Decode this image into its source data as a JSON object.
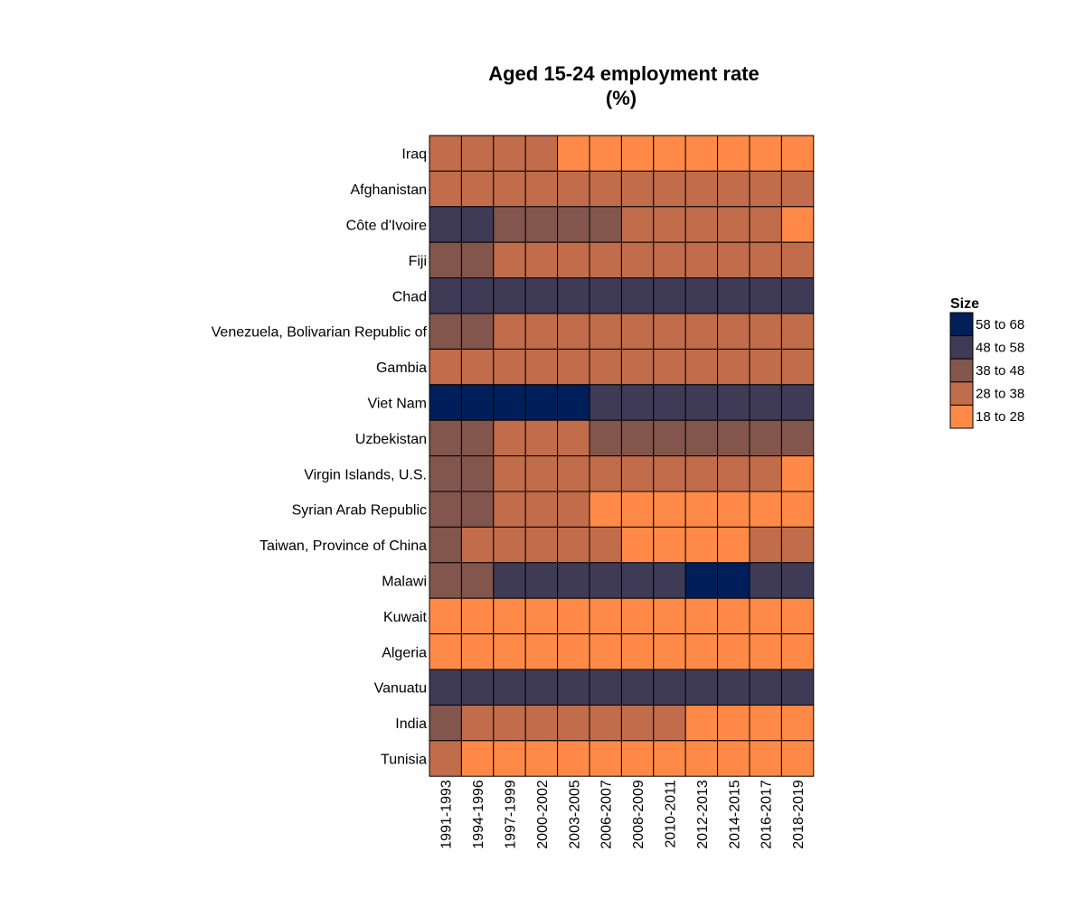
{
  "chart_data": {
    "type": "heatmap",
    "title_line1": "Aged 15-24 employment rate",
    "title_line2": "(%)",
    "x_categories": [
      "1991-1993",
      "1994-1996",
      "1997-1999",
      "2000-2002",
      "2003-2005",
      "2006-2007",
      "2008-2009",
      "2010-2011",
      "2012-2013",
      "2014-2015",
      "2016-2017",
      "2018-2019"
    ],
    "y_categories": [
      "Iraq",
      "Afghanistan",
      "Côte d'Ivoire",
      "Fiji",
      "Chad",
      "Venezuela, Bolivarian Republic of",
      "Gambia",
      "Viet Nam",
      "Uzbekistan",
      "Virgin Islands, U.S.",
      "Syrian Arab Republic",
      "Taiwan, Province of China",
      "Malawi",
      "Kuwait",
      "Algeria",
      "Vanuatu",
      "India",
      "Tunisia"
    ],
    "values_bin_index": [
      [
        1,
        1,
        1,
        1,
        0,
        0,
        0,
        0,
        0,
        0,
        0,
        0
      ],
      [
        1,
        1,
        1,
        1,
        1,
        1,
        1,
        1,
        1,
        1,
        1,
        1
      ],
      [
        3,
        3,
        2,
        2,
        2,
        2,
        1,
        1,
        1,
        1,
        1,
        0
      ],
      [
        2,
        2,
        1,
        1,
        1,
        1,
        1,
        1,
        1,
        1,
        1,
        1
      ],
      [
        3,
        3,
        3,
        3,
        3,
        3,
        3,
        3,
        3,
        3,
        3,
        3
      ],
      [
        2,
        2,
        1,
        1,
        1,
        1,
        1,
        1,
        1,
        1,
        1,
        1
      ],
      [
        1,
        1,
        1,
        1,
        1,
        1,
        1,
        1,
        1,
        1,
        1,
        1
      ],
      [
        4,
        4,
        4,
        4,
        4,
        3,
        3,
        3,
        3,
        3,
        3,
        3
      ],
      [
        2,
        2,
        1,
        1,
        1,
        2,
        2,
        2,
        2,
        2,
        2,
        2
      ],
      [
        2,
        2,
        1,
        1,
        1,
        1,
        1,
        1,
        1,
        1,
        1,
        0
      ],
      [
        2,
        2,
        1,
        1,
        1,
        0,
        0,
        0,
        0,
        0,
        0,
        0
      ],
      [
        2,
        1,
        1,
        1,
        1,
        1,
        0,
        0,
        0,
        0,
        1,
        1
      ],
      [
        2,
        2,
        3,
        3,
        3,
        3,
        3,
        3,
        4,
        4,
        3,
        3
      ],
      [
        0,
        0,
        0,
        0,
        0,
        0,
        0,
        0,
        0,
        0,
        0,
        0
      ],
      [
        0,
        0,
        0,
        0,
        0,
        0,
        0,
        0,
        0,
        0,
        0,
        0
      ],
      [
        3,
        3,
        3,
        3,
        3,
        3,
        3,
        3,
        3,
        3,
        3,
        3
      ],
      [
        2,
        1,
        1,
        1,
        1,
        1,
        1,
        1,
        0,
        0,
        0,
        0
      ],
      [
        1,
        0,
        0,
        0,
        0,
        0,
        0,
        0,
        0,
        0,
        0,
        0
      ]
    ],
    "bins": [
      {
        "label": "18 to 28",
        "range": [
          18,
          28
        ],
        "color": "#FF8A47"
      },
      {
        "label": "28 to 38",
        "range": [
          28,
          38
        ],
        "color": "#C16C4A"
      },
      {
        "label": "38 to 48",
        "range": [
          38,
          48
        ],
        "color": "#82554D"
      },
      {
        "label": "48 to 58",
        "range": [
          48,
          58
        ],
        "color": "#3F3A55"
      },
      {
        "label": "58 to 68",
        "range": [
          58,
          68
        ],
        "color": "#001F5A"
      }
    ],
    "legend_title": "Size",
    "legend_position": "right",
    "xlabel": "",
    "ylabel": ""
  }
}
